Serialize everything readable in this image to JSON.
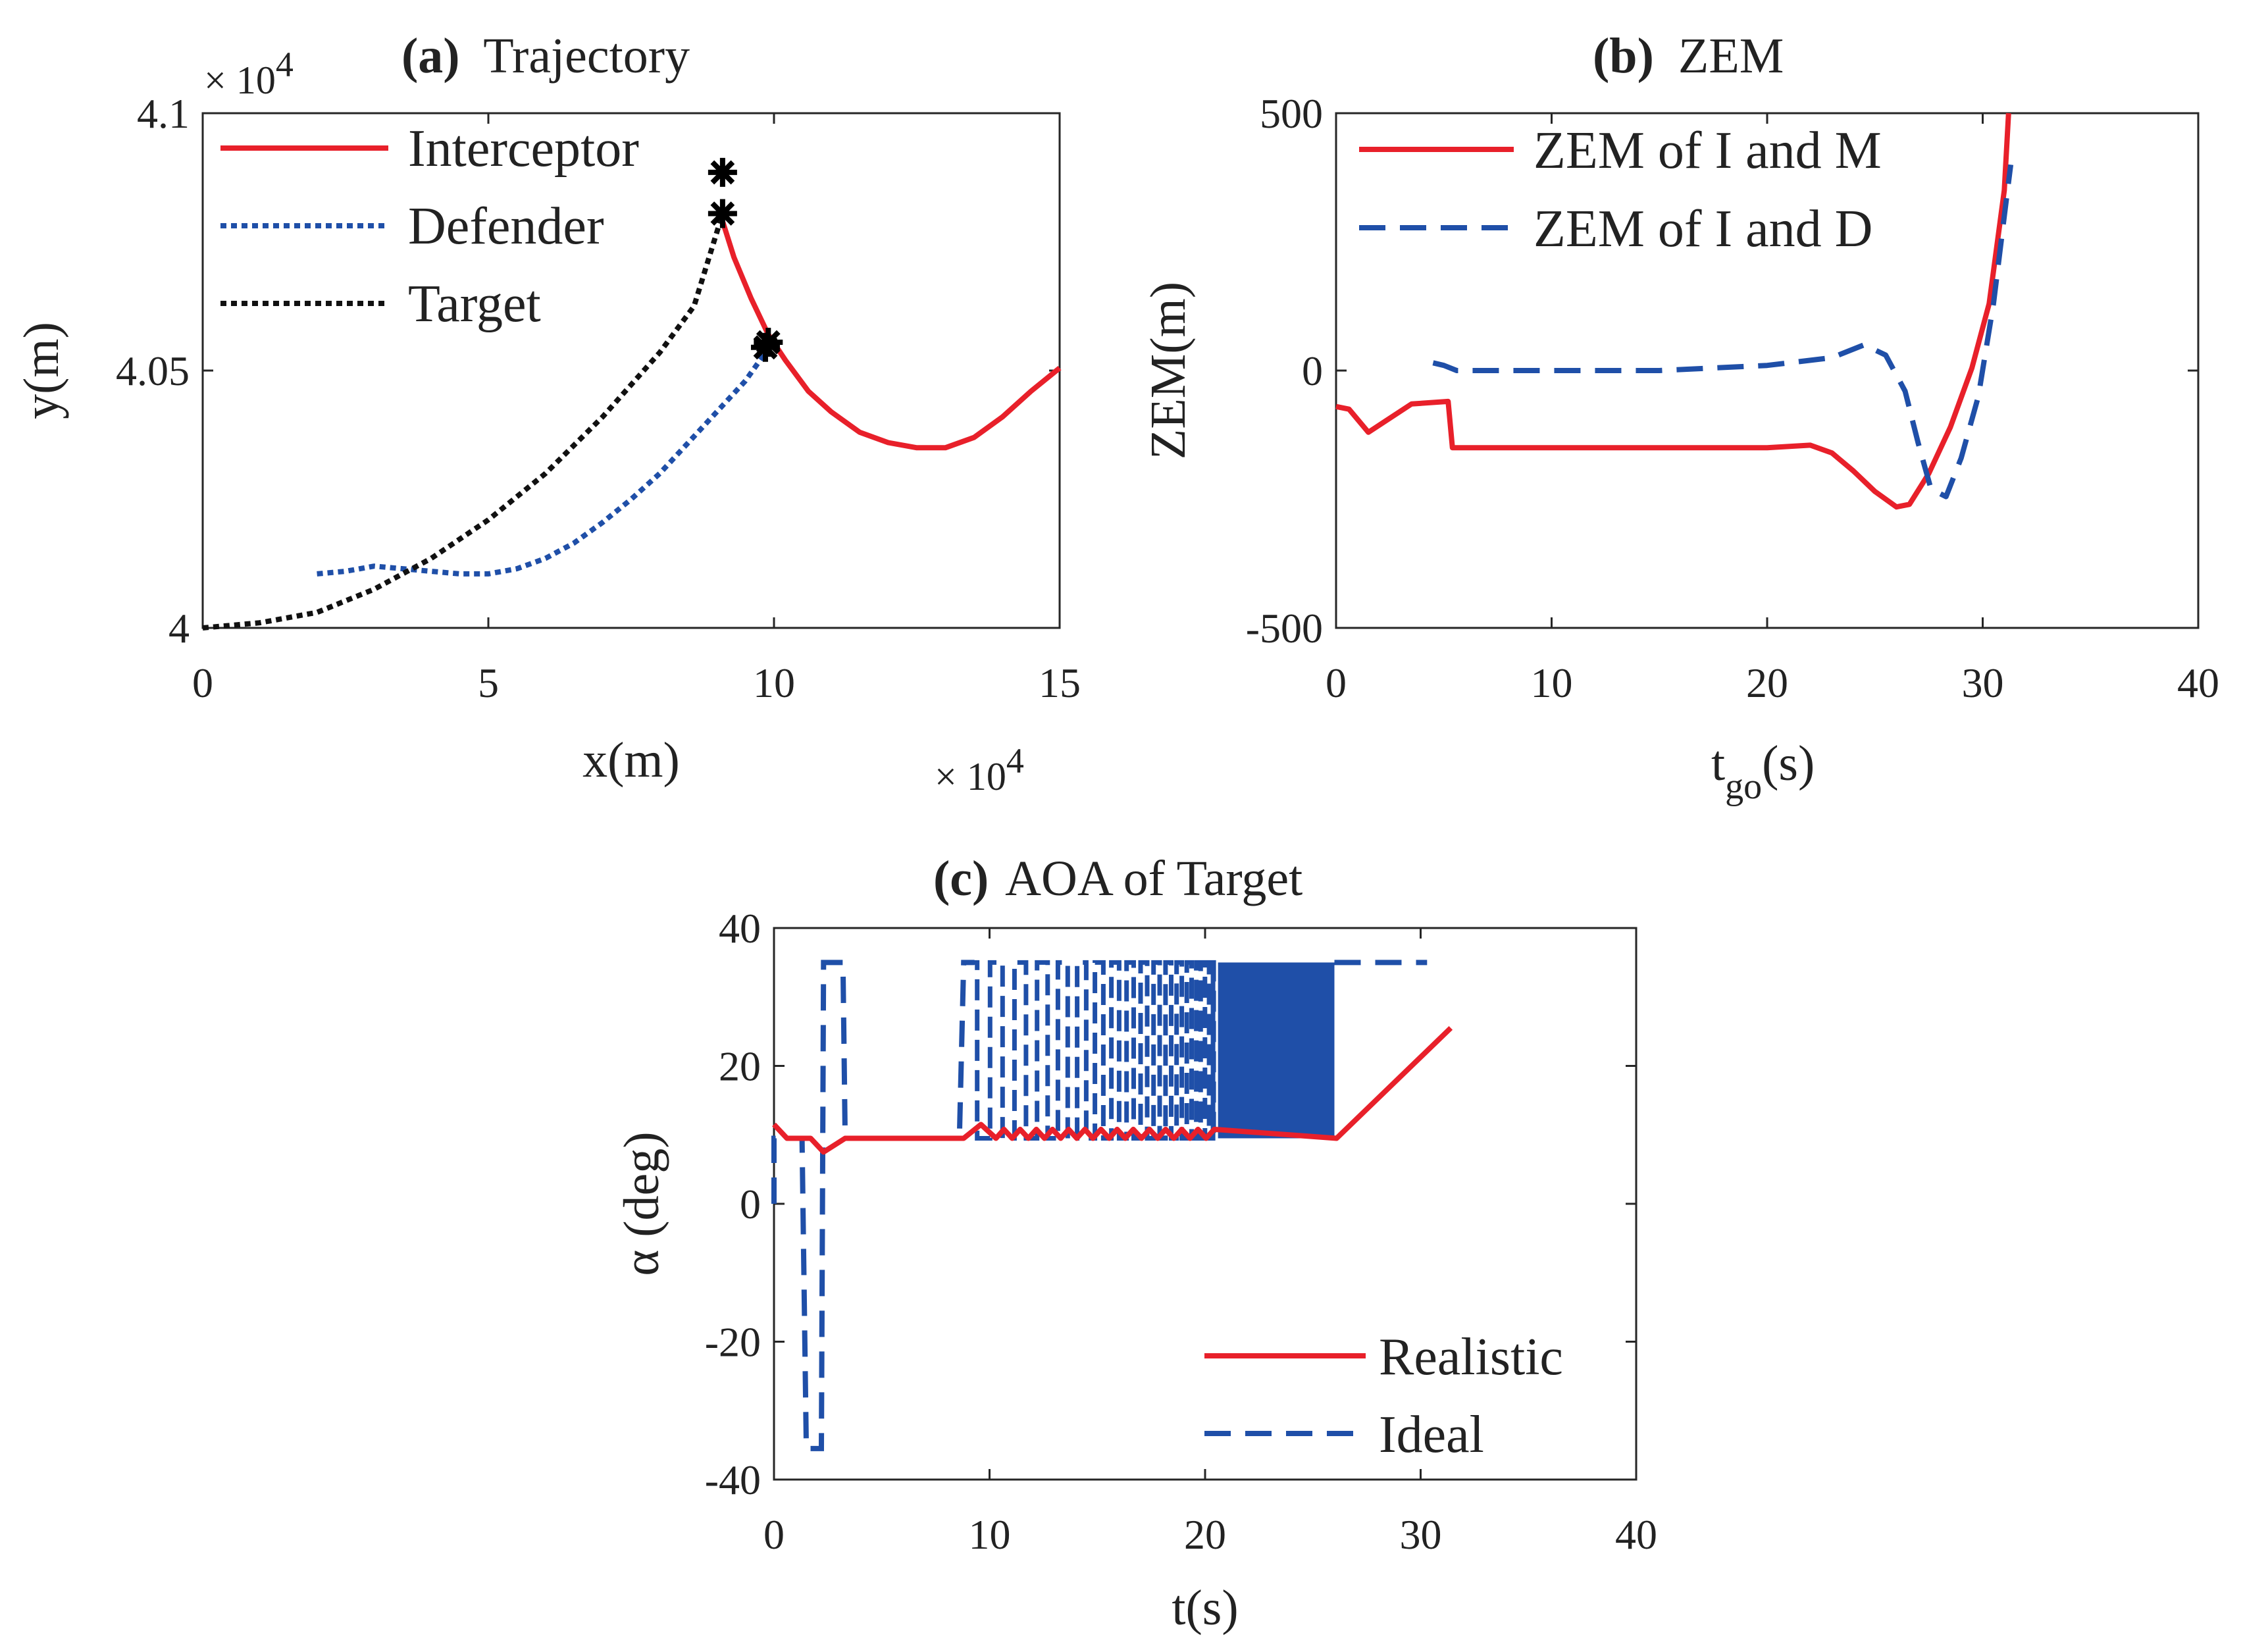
{
  "chart_data": [
    {
      "id": "a",
      "type": "line",
      "title_prefix": "(a)",
      "title": "Trajectory",
      "xlabel": "x(m)",
      "ylabel": "y(m)",
      "x_multiplier": "× 10",
      "x_multiplier_exp": "4",
      "y_multiplier": "× 10",
      "y_multiplier_exp": "4",
      "xlim": [
        0,
        15
      ],
      "ylim": [
        4.0,
        4.1
      ],
      "xticks": [
        "0",
        "5",
        "10",
        "15"
      ],
      "yticks": [
        "4",
        "4.05",
        "4.1"
      ],
      "grid": false,
      "legend_position": "top-left",
      "series": [
        {
          "name": "Interceptor",
          "style": "solid",
          "color": "#e8202a",
          "points": [
            [
              9.1,
              4.079
            ],
            [
              9.3,
              4.072
            ],
            [
              9.6,
              4.064
            ],
            [
              9.9,
              4.057
            ],
            [
              10.2,
              4.052
            ],
            [
              10.6,
              4.046
            ],
            [
              11.0,
              4.042
            ],
            [
              11.5,
              4.038
            ],
            [
              12.0,
              4.036
            ],
            [
              12.5,
              4.035
            ],
            [
              13.0,
              4.035
            ],
            [
              13.5,
              4.037
            ],
            [
              14.0,
              4.041
            ],
            [
              14.5,
              4.046
            ],
            [
              15.0,
              4.0505
            ]
          ]
        },
        {
          "name": "Defender",
          "style": "dotted",
          "color": "#1f4fa8",
          "points": [
            [
              2.0,
              4.0105
            ],
            [
              2.5,
              4.011
            ],
            [
              3.0,
              4.012
            ],
            [
              3.5,
              4.0115
            ],
            [
              4.0,
              4.011
            ],
            [
              4.5,
              4.0105
            ],
            [
              5.0,
              4.0105
            ],
            [
              5.5,
              4.0115
            ],
            [
              6.0,
              4.0135
            ],
            [
              6.5,
              4.0165
            ],
            [
              7.0,
              4.0205
            ],
            [
              7.5,
              4.025
            ],
            [
              8.0,
              4.03
            ],
            [
              8.5,
              4.036
            ],
            [
              9.0,
              4.042
            ],
            [
              9.5,
              4.048
            ],
            [
              9.85,
              4.0535
            ]
          ]
        },
        {
          "name": "Target",
          "style": "dotted",
          "color": "#111111",
          "points": [
            [
              0.0,
              4.0
            ],
            [
              1.0,
              4.001
            ],
            [
              2.0,
              4.003
            ],
            [
              3.0,
              4.0075
            ],
            [
              4.0,
              4.0135
            ],
            [
              5.0,
              4.021
            ],
            [
              6.0,
              4.03
            ],
            [
              7.0,
              4.041
            ],
            [
              8.0,
              4.0535
            ],
            [
              8.6,
              4.0625
            ],
            [
              9.1,
              4.0805
            ]
          ]
        }
      ],
      "markers": [
        [
          9.1,
          4.0885
        ],
        [
          9.1,
          4.0805
        ],
        [
          9.85,
          4.0545
        ],
        [
          9.9,
          4.0555
        ]
      ]
    },
    {
      "id": "b",
      "type": "line",
      "title_prefix": "(b)",
      "title": "ZEM",
      "xlabel": "t",
      "xlabel_sub": "go",
      "xlabel_suffix": "(s)",
      "ylabel": "ZEM(m)",
      "xlim": [
        0,
        40
      ],
      "ylim": [
        -500,
        500
      ],
      "xticks": [
        "0",
        "10",
        "20",
        "30",
        "40"
      ],
      "yticks": [
        "-500",
        "0",
        "500"
      ],
      "grid": false,
      "legend_position": "top-left",
      "series": [
        {
          "name": "ZEM of I and M",
          "style": "solid",
          "color": "#e8202a",
          "points": [
            [
              0,
              -70
            ],
            [
              0.6,
              -75
            ],
            [
              1.5,
              -120
            ],
            [
              3.5,
              -65
            ],
            [
              5.2,
              -60
            ],
            [
              5.4,
              -150
            ],
            [
              10,
              -150
            ],
            [
              15,
              -150
            ],
            [
              20,
              -150
            ],
            [
              22,
              -145
            ],
            [
              23,
              -160
            ],
            [
              24,
              -195
            ],
            [
              25,
              -235
            ],
            [
              26,
              -265
            ],
            [
              26.6,
              -260
            ],
            [
              27.5,
              -200
            ],
            [
              28.5,
              -110
            ],
            [
              29.5,
              5
            ],
            [
              30.3,
              130
            ],
            [
              31.0,
              350
            ],
            [
              31.2,
              500
            ]
          ]
        },
        {
          "name": "ZEM of I and D",
          "style": "dashed",
          "color": "#1f4fa8",
          "points": [
            [
              4.5,
              15
            ],
            [
              5.0,
              10
            ],
            [
              5.6,
              0
            ],
            [
              10,
              0
            ],
            [
              15,
              0
            ],
            [
              20,
              10
            ],
            [
              23,
              25
            ],
            [
              24.5,
              50
            ],
            [
              25.5,
              30
            ],
            [
              26.4,
              -40
            ],
            [
              27.0,
              -140
            ],
            [
              27.6,
              -230
            ],
            [
              28.3,
              -245
            ],
            [
              29.0,
              -170
            ],
            [
              29.8,
              -50
            ],
            [
              30.5,
              130
            ],
            [
              31.0,
              300
            ],
            [
              31.3,
              400
            ]
          ]
        }
      ]
    },
    {
      "id": "c",
      "type": "line",
      "title_prefix": "(c)",
      "title": "AOA of Target",
      "xlabel": "t(s)",
      "ylabel": "α (deg)",
      "xlim": [
        0,
        40
      ],
      "ylim": [
        -40,
        40
      ],
      "xticks": [
        "0",
        "10",
        "20",
        "30",
        "40"
      ],
      "yticks": [
        "-40",
        "-20",
        "0",
        "20",
        "40"
      ],
      "grid": false,
      "legend_position": "bottom-right",
      "series": [
        {
          "name": "Realistic",
          "style": "solid",
          "color": "#e8202a",
          "points": [
            [
              0,
              11.5
            ],
            [
              0.6,
              9.5
            ],
            [
              1.7,
              9.5
            ],
            [
              2.3,
              7.5
            ],
            [
              3.3,
              9.5
            ],
            [
              8.8,
              9.5
            ],
            [
              9.6,
              11.5
            ],
            [
              10.3,
              9.5
            ],
            [
              12,
              9.5
            ],
            [
              26.1,
              9.5
            ],
            [
              31.4,
              25.5
            ]
          ]
        },
        {
          "name": "Ideal",
          "style": "dashed",
          "color": "#1f4fa8",
          "points": [
            [
              0,
              0
            ],
            [
              0,
              9.5
            ],
            [
              1.3,
              9.5
            ],
            [
              1.5,
              -35.5
            ],
            [
              2.2,
              -35.5
            ],
            [
              2.3,
              35
            ],
            [
              3.2,
              35
            ],
            [
              3.3,
              9.5
            ],
            [
              8.6,
              9.5
            ],
            [
              8.8,
              35
            ],
            [
              9.3,
              35
            ]
          ],
          "switch_band": {
            "start": 8.8,
            "end": 20.4,
            "low": 9.5,
            "high": 35,
            "period_start": 1.25,
            "period_end": 0.35
          },
          "dense_band": {
            "start": 20.6,
            "end": 26.0,
            "low": 9.5,
            "high": 35
          },
          "tail": [
            [
              26.0,
              35
            ],
            [
              30.3,
              35
            ]
          ]
        }
      ]
    }
  ]
}
